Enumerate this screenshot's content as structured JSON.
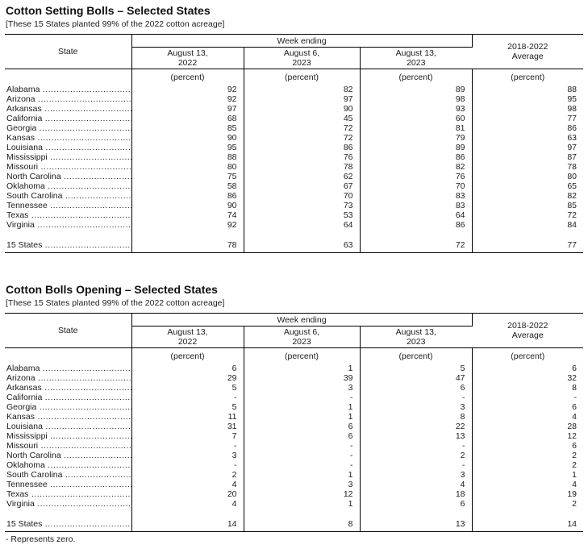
{
  "page": {
    "footnote": "- Represents zero."
  },
  "tables": [
    {
      "title": "Cotton Setting Bolls – Selected States",
      "note": "[These 15 States planted 99% of the 2022 cotton acreage]",
      "header": {
        "state": "State",
        "week_ending": "Week ending",
        "cols": [
          {
            "l1": "August 13,",
            "l2": "2022"
          },
          {
            "l1": "August 6,",
            "l2": "2023"
          },
          {
            "l1": "August 13,",
            "l2": "2023"
          }
        ],
        "avg": {
          "l1": "2018-2022",
          "l2": "Average"
        },
        "unit": "(percent)"
      },
      "rows": [
        {
          "state": "Alabama",
          "values": [
            "92",
            "82",
            "89",
            "88"
          ]
        },
        {
          "state": "Arizona",
          "values": [
            "92",
            "97",
            "98",
            "95"
          ]
        },
        {
          "state": "Arkansas",
          "values": [
            "97",
            "90",
            "93",
            "98"
          ]
        },
        {
          "state": "California",
          "values": [
            "68",
            "45",
            "60",
            "77"
          ]
        },
        {
          "state": "Georgia",
          "values": [
            "85",
            "72",
            "81",
            "86"
          ]
        },
        {
          "state": "Kansas",
          "values": [
            "90",
            "72",
            "79",
            "63"
          ]
        },
        {
          "state": "Louisiana",
          "values": [
            "95",
            "86",
            "89",
            "97"
          ]
        },
        {
          "state": "Mississippi",
          "values": [
            "88",
            "76",
            "86",
            "87"
          ]
        },
        {
          "state": "Missouri",
          "values": [
            "80",
            "78",
            "82",
            "78"
          ]
        },
        {
          "state": "North Carolina",
          "values": [
            "75",
            "62",
            "76",
            "80"
          ]
        },
        {
          "state": "Oklahoma",
          "values": [
            "58",
            "67",
            "70",
            "65"
          ]
        },
        {
          "state": "South Carolina",
          "values": [
            "86",
            "70",
            "83",
            "82"
          ]
        },
        {
          "state": "Tennessee",
          "values": [
            "90",
            "73",
            "83",
            "85"
          ]
        },
        {
          "state": "Texas",
          "values": [
            "74",
            "53",
            "64",
            "72"
          ]
        },
        {
          "state": "Virginia",
          "values": [
            "92",
            "64",
            "86",
            "84"
          ]
        }
      ],
      "total": {
        "state": "15 States",
        "values": [
          "78",
          "63",
          "72",
          "77"
        ]
      }
    },
    {
      "title": "Cotton Bolls Opening – Selected States",
      "note": "[These 15 States planted 99% of the 2022 cotton acreage]",
      "header": {
        "state": "State",
        "week_ending": "Week ending",
        "cols": [
          {
            "l1": "August 13,",
            "l2": "2022"
          },
          {
            "l1": "August 6,",
            "l2": "2023"
          },
          {
            "l1": "August 13,",
            "l2": "2023"
          }
        ],
        "avg": {
          "l1": "2018-2022",
          "l2": "Average"
        },
        "unit": "(percent)"
      },
      "rows": [
        {
          "state": "Alabama",
          "values": [
            "6",
            "1",
            "5",
            "6"
          ]
        },
        {
          "state": "Arizona",
          "values": [
            "29",
            "39",
            "47",
            "32"
          ]
        },
        {
          "state": "Arkansas",
          "values": [
            "5",
            "3",
            "6",
            "8"
          ]
        },
        {
          "state": "California",
          "values": [
            "-",
            "-",
            "-",
            "-"
          ]
        },
        {
          "state": "Georgia",
          "values": [
            "5",
            "1",
            "3",
            "6"
          ]
        },
        {
          "state": "Kansas",
          "values": [
            "11",
            "1",
            "8",
            "4"
          ]
        },
        {
          "state": "Louisiana",
          "values": [
            "31",
            "6",
            "22",
            "28"
          ]
        },
        {
          "state": "Mississippi",
          "values": [
            "7",
            "6",
            "13",
            "12"
          ]
        },
        {
          "state": "Missouri",
          "values": [
            "-",
            "-",
            "-",
            "6"
          ]
        },
        {
          "state": "North Carolina",
          "values": [
            "3",
            "-",
            "2",
            "2"
          ]
        },
        {
          "state": "Oklahoma",
          "values": [
            "-",
            "-",
            "-",
            "2"
          ]
        },
        {
          "state": "South Carolina",
          "values": [
            "2",
            "1",
            "3",
            "1"
          ]
        },
        {
          "state": "Tennessee",
          "values": [
            "4",
            "3",
            "4",
            "4"
          ]
        },
        {
          "state": "Texas",
          "values": [
            "20",
            "12",
            "18",
            "19"
          ]
        },
        {
          "state": "Virginia",
          "values": [
            "4",
            "1",
            "6",
            "2"
          ]
        }
      ],
      "total": {
        "state": "15 States",
        "values": [
          "14",
          "8",
          "13",
          "14"
        ]
      }
    }
  ]
}
